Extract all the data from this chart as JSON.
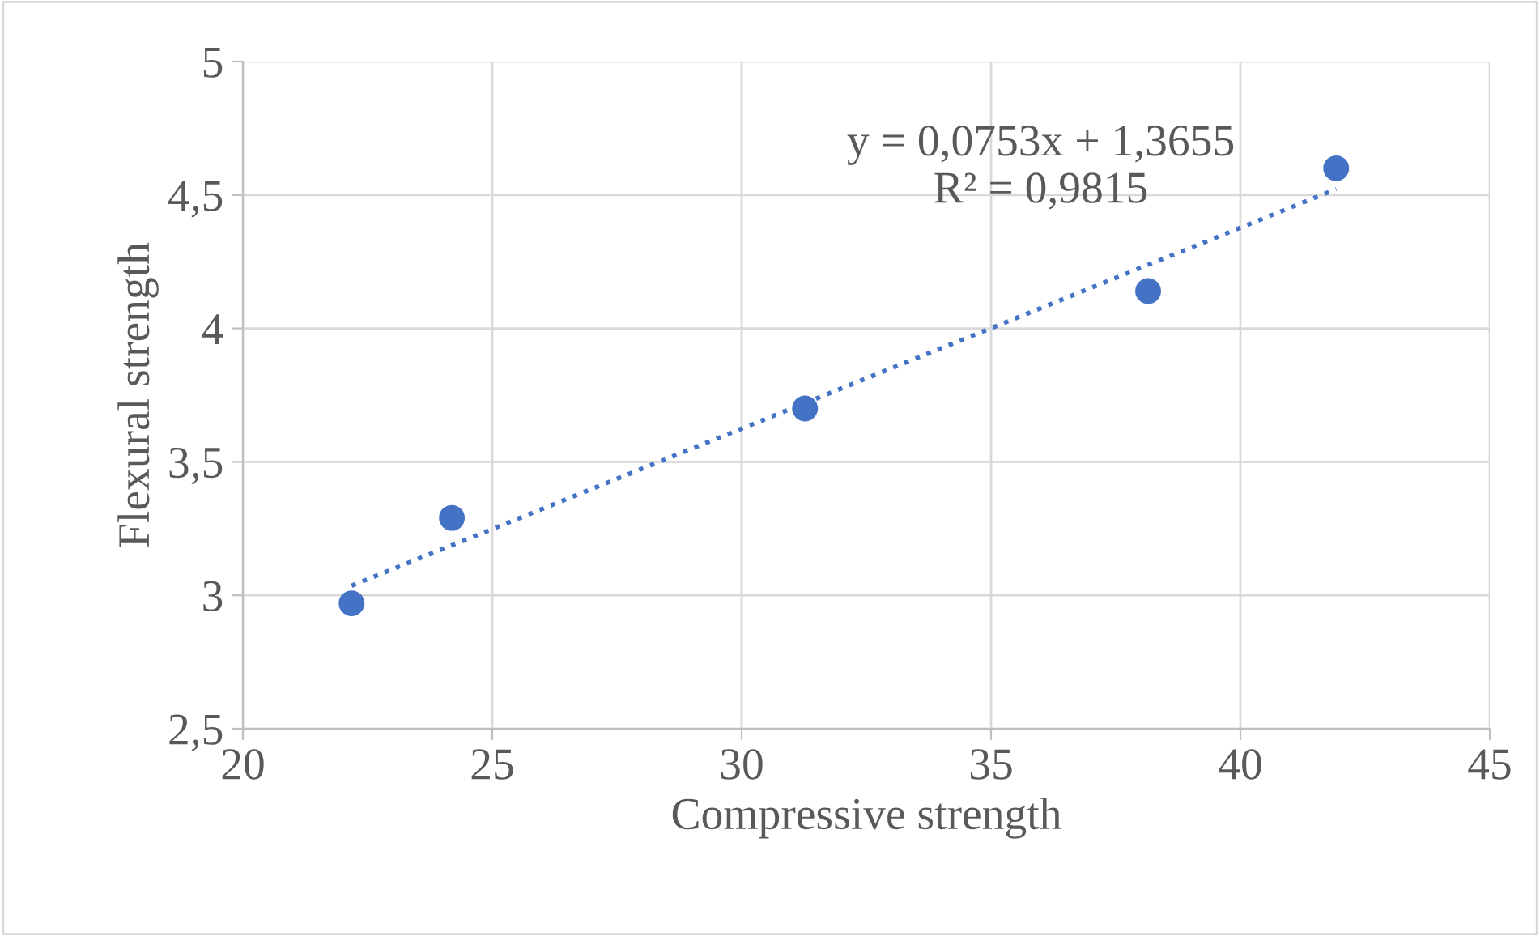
{
  "chart_data": {
    "type": "scatter",
    "xlabel": "Compressive strength",
    "ylabel": "Flexural strength",
    "series": [
      {
        "color": "#4472c4",
        "x": [
          22.18,
          24.19,
          31.27,
          38.15,
          41.92
        ],
        "values": [
          2.97,
          3.29,
          3.7,
          4.14,
          4.6
        ],
        "marker": "circle"
      },
      {
        "type": "line",
        "color": "#4472c4",
        "x": [
          22.18,
          41.92
        ],
        "values": [
          3.036,
          4.522
        ],
        "line_style": "dotted",
        "marker": "none"
      }
    ],
    "annotations": [
      "y = 0,0753x + 1,3655\nR² = 0,9815"
    ],
    "xlim": [
      20,
      45
    ],
    "xticks": [
      20,
      25,
      30,
      35,
      40,
      45
    ],
    "ylim": [
      2.5,
      5
    ],
    "yticks": [
      {
        "value": 2.5,
        "label": "2,5"
      },
      3,
      {
        "value": 3.5,
        "label": "3,5"
      },
      4,
      {
        "value": 4.5,
        "label": "4,5"
      },
      5
    ],
    "grid": true,
    "legend": false
  }
}
